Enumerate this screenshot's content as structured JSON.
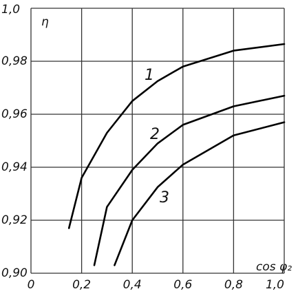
{
  "chart_data": {
    "type": "line",
    "y_label": "η",
    "x_label": "cos φ₂",
    "xlim": [
      0,
      1.0
    ],
    "ylim": [
      0.9,
      1.0
    ],
    "xticks": [
      0,
      {
        "value": 0.2,
        "label": "0,2"
      },
      {
        "value": 0.4,
        "label": "0,4"
      },
      {
        "value": 0.6,
        "label": "0,6"
      },
      {
        "value": 0.8,
        "label": "0,8"
      },
      {
        "value": 1.0,
        "label": "1,0"
      }
    ],
    "yticks": [
      {
        "value": 0.9,
        "label": "0,90"
      },
      {
        "value": 0.92,
        "label": "0,92"
      },
      {
        "value": 0.94,
        "label": "0,94"
      },
      {
        "value": 0.96,
        "label": "0,96"
      },
      {
        "value": 0.98,
        "label": "0,98"
      },
      {
        "value": 1.0,
        "label": "1,0"
      }
    ],
    "grid": true,
    "series": [
      {
        "name": "1",
        "color": "#000000",
        "x": [
          0.15,
          0.2,
          0.3,
          0.4,
          0.5,
          0.6,
          0.8,
          1.0
        ],
        "values": [
          0.917,
          0.936,
          0.953,
          0.965,
          0.9725,
          0.978,
          0.984,
          0.9865
        ]
      },
      {
        "name": "2",
        "color": "#000000",
        "x": [
          0.25,
          0.3,
          0.4,
          0.5,
          0.6,
          0.8,
          1.0
        ],
        "values": [
          0.903,
          0.925,
          0.939,
          0.949,
          0.956,
          0.963,
          0.967
        ]
      },
      {
        "name": "3",
        "color": "#000000",
        "x": [
          0.33,
          0.4,
          0.5,
          0.6,
          0.8,
          1.0
        ],
        "values": [
          0.903,
          0.92,
          0.9325,
          0.941,
          0.952,
          0.957
        ]
      }
    ]
  }
}
